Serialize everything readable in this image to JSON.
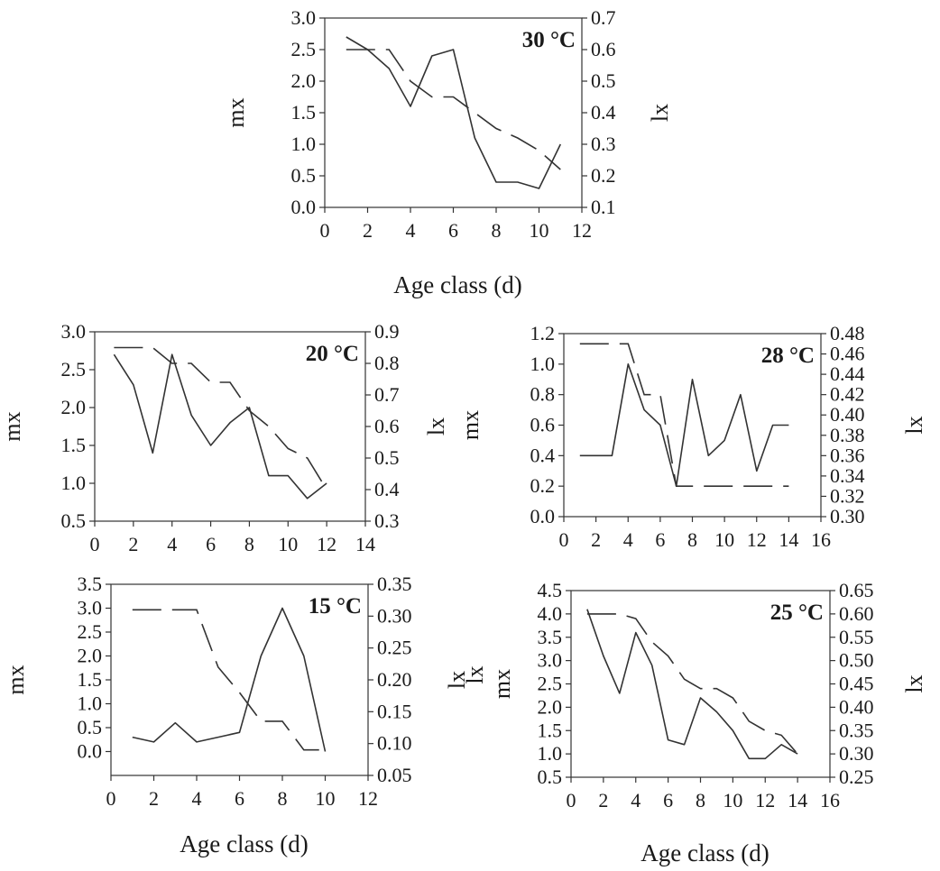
{
  "chart_data": [
    {
      "type": "line",
      "title": "30 °C",
      "xlabel": "Age class (d)",
      "ylabel": "mx",
      "y2label": "lx",
      "xlim": [
        0,
        12
      ],
      "ylim": [
        0,
        3
      ],
      "y2lim": [
        0.1,
        0.7
      ],
      "xticks": [
        "0",
        "2",
        "4",
        "6",
        "8",
        "10",
        "12"
      ],
      "yticks": [
        "0.0",
        "0.5",
        "1.0",
        "1.5",
        "2.0",
        "2.5",
        "3.0"
      ],
      "y2ticks": [
        "0.1",
        "0.2",
        "0.3",
        "0.4",
        "0.5",
        "0.6",
        "0.7"
      ],
      "series": [
        {
          "axis": "left",
          "style": "solid",
          "x": [
            1,
            2,
            3,
            4,
            5,
            6,
            7,
            8,
            9,
            10,
            11
          ],
          "values": [
            2.7,
            2.5,
            2.2,
            1.6,
            2.4,
            2.5,
            1.1,
            0.4,
            0.4,
            0.3,
            1.0
          ]
        },
        {
          "axis": "right",
          "style": "dashed",
          "x": [
            1,
            2,
            3,
            4,
            5,
            6,
            7,
            8,
            9,
            10,
            11
          ],
          "values": [
            0.6,
            0.6,
            0.6,
            0.5,
            0.45,
            0.45,
            0.4,
            0.35,
            0.32,
            0.28,
            0.22
          ]
        }
      ]
    },
    {
      "type": "line",
      "title": "20 °C",
      "xlabel": "",
      "ylabel": "mx",
      "y2label": "lx",
      "xlim": [
        0,
        14
      ],
      "ylim": [
        0.5,
        3
      ],
      "y2lim": [
        0.3,
        0.9
      ],
      "xticks": [
        "0",
        "2",
        "4",
        "6",
        "8",
        "10",
        "12",
        "14"
      ],
      "yticks": [
        "0.5",
        "1.0",
        "1.5",
        "2.0",
        "2.5",
        "3.0"
      ],
      "y2ticks": [
        "0.3",
        "0.4",
        "0.5",
        "0.6",
        "0.7",
        "0.8",
        "0.9"
      ],
      "series": [
        {
          "axis": "left",
          "style": "solid",
          "x": [
            1,
            2,
            3,
            4,
            5,
            6,
            7,
            8,
            9,
            10,
            11,
            12
          ],
          "values": [
            2.7,
            2.3,
            1.4,
            2.7,
            1.9,
            1.5,
            1.8,
            2.0,
            1.1,
            1.1,
            0.8,
            1.0
          ]
        },
        {
          "axis": "right",
          "style": "dashed",
          "x": [
            1,
            2,
            3,
            4,
            5,
            6,
            7,
            8,
            9,
            10,
            11,
            12
          ],
          "values": [
            0.85,
            0.85,
            0.85,
            0.8,
            0.8,
            0.74,
            0.74,
            0.65,
            0.6,
            0.53,
            0.5,
            0.4
          ]
        }
      ]
    },
    {
      "type": "line",
      "title": "28 °C",
      "xlabel": "",
      "ylabel": "mx",
      "y2label": "lx",
      "xlim": [
        0,
        16
      ],
      "ylim": [
        0,
        1.2
      ],
      "y2lim": [
        0.3,
        0.48
      ],
      "xticks": [
        "0",
        "2",
        "4",
        "6",
        "8",
        "10",
        "12",
        "14",
        "16"
      ],
      "yticks": [
        "0.0",
        "0.2",
        "0.4",
        "0.6",
        "0.8",
        "1.0",
        "1.2"
      ],
      "y2ticks": [
        "0.30",
        "0.32",
        "0.34",
        "0.36",
        "0.38",
        "0.40",
        "0.42",
        "0.44",
        "0.46",
        "0.48"
      ],
      "series": [
        {
          "axis": "left",
          "style": "solid",
          "x": [
            1,
            2,
            3,
            4,
            5,
            6,
            7,
            8,
            9,
            10,
            11,
            12,
            13,
            14
          ],
          "values": [
            0.4,
            0.4,
            0.4,
            1.0,
            0.7,
            0.6,
            0.2,
            0.9,
            0.4,
            0.5,
            0.8,
            0.3,
            0.6,
            0.6
          ]
        },
        {
          "axis": "right",
          "style": "dashed",
          "x": [
            1,
            2,
            3,
            4,
            5,
            6,
            7,
            8,
            9,
            10,
            11,
            12,
            13,
            14
          ],
          "values": [
            0.47,
            0.47,
            0.47,
            0.47,
            0.42,
            0.42,
            0.33,
            0.33,
            0.33,
            0.33,
            0.33,
            0.33,
            0.33,
            0.33
          ]
        }
      ]
    },
    {
      "type": "line",
      "title": "15 °C",
      "xlabel": "Age class (d)",
      "ylabel": "mx",
      "y2label": "lx",
      "xlim": [
        0,
        12
      ],
      "ylim": [
        -0.5,
        3.5
      ],
      "y2lim": [
        0.05,
        0.35
      ],
      "xticks": [
        "0",
        "2",
        "4",
        "6",
        "8",
        "10",
        "12"
      ],
      "yticks": [
        "0.0",
        "0.5",
        "1.0",
        "1.5",
        "2.0",
        "2.5",
        "3.0",
        "3.5"
      ],
      "y2ticks": [
        "0.05",
        "0.10",
        "0.15",
        "0.20",
        "0.25",
        "0.30",
        "0.35"
      ],
      "series": [
        {
          "axis": "left",
          "style": "solid",
          "x": [
            1,
            2,
            3,
            4,
            5,
            6,
            7,
            8,
            9,
            10
          ],
          "values": [
            0.3,
            0.2,
            0.6,
            0.2,
            0.3,
            0.4,
            2.0,
            3.0,
            2.0,
            0.0
          ]
        },
        {
          "axis": "right",
          "style": "dashed",
          "x": [
            1,
            2,
            3,
            4,
            5,
            6,
            7,
            8,
            9,
            10
          ],
          "values": [
            0.31,
            0.31,
            0.31,
            0.31,
            0.22,
            0.18,
            0.135,
            0.135,
            0.09,
            0.09
          ]
        }
      ]
    },
    {
      "type": "line",
      "title": "25 °C",
      "xlabel": "Age class (d)",
      "ylabel": "mx",
      "ylabel_extra": "lx",
      "y2label": "lx",
      "xlim": [
        0,
        16
      ],
      "ylim": [
        0.5,
        4.5
      ],
      "y2lim": [
        0.25,
        0.65
      ],
      "xticks": [
        "0",
        "2",
        "4",
        "6",
        "8",
        "10",
        "12",
        "14",
        "16"
      ],
      "yticks": [
        "0.5",
        "1.0",
        "1.5",
        "2.0",
        "2.5",
        "3.0",
        "3.5",
        "4.0",
        "4.5"
      ],
      "y2ticks": [
        "0.25",
        "0.30",
        "0.35",
        "0.40",
        "0.45",
        "0.50",
        "0.55",
        "0.60",
        "0.65"
      ],
      "series": [
        {
          "axis": "left",
          "style": "solid",
          "x": [
            1,
            2,
            3,
            4,
            5,
            6,
            7,
            8,
            9,
            10,
            11,
            12,
            13,
            14
          ],
          "values": [
            4.1,
            3.1,
            2.3,
            3.6,
            2.9,
            1.3,
            1.2,
            2.2,
            1.9,
            1.5,
            0.9,
            0.9,
            1.2,
            1.0
          ]
        },
        {
          "axis": "right",
          "style": "dashed",
          "x": [
            1,
            2,
            3,
            4,
            5,
            6,
            7,
            8,
            9,
            10,
            11,
            12,
            13,
            14
          ],
          "values": [
            0.6,
            0.6,
            0.6,
            0.59,
            0.54,
            0.51,
            0.46,
            0.44,
            0.44,
            0.42,
            0.37,
            0.35,
            0.34,
            0.3
          ]
        }
      ]
    }
  ]
}
